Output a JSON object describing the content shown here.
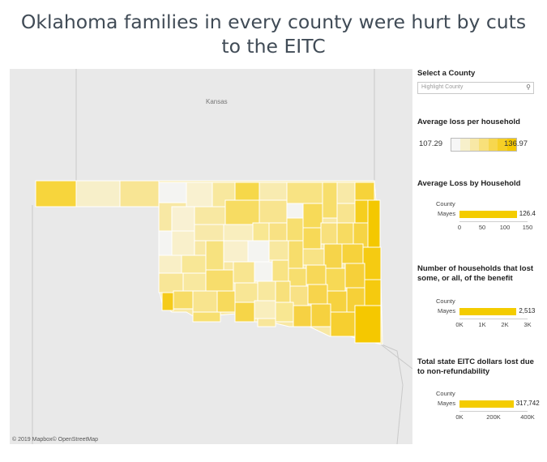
{
  "title": {
    "line1": "Oklahoma families in every county were hurt by cuts",
    "line2": "to the EITC"
  },
  "map": {
    "state_label": "Kansas",
    "attribution": "© 2019 Mapbox© OpenStreetMap"
  },
  "filter": {
    "heading": "Select a County",
    "placeholder": "Highlight County"
  },
  "color_legend": {
    "heading": "Average loss per household",
    "min": "107.29",
    "max": "136.97",
    "colors": [
      "#f6f6f6",
      "#f7f0cb",
      "#f8e8a6",
      "#f8e07a",
      "#f7d74e",
      "#f6cf26",
      "#f5c800"
    ]
  },
  "avg_loss_chart": {
    "heading": "Average Loss by Household",
    "field_label": "County",
    "category": "Mayes",
    "value_label": "126.4",
    "ticks": [
      "0",
      "50",
      "100",
      "150"
    ]
  },
  "households_chart": {
    "heading": "Number of households that lost some, or all, of the benefit",
    "field_label": "County",
    "category": "Mayes",
    "value_label": "2,513",
    "ticks": [
      "0K",
      "1K",
      "2K",
      "3K"
    ]
  },
  "dollars_chart": {
    "heading": "Total state EITC dollars lost due to non-refundability",
    "field_label": "County",
    "category": "Mayes",
    "value_label": "317,742",
    "ticks": [
      "0K",
      "200K",
      "400K"
    ]
  },
  "chart_data": [
    {
      "type": "bar",
      "title": "Average Loss by Household",
      "categories": [
        "Mayes"
      ],
      "values": [
        126.4
      ],
      "xlim": [
        0,
        150
      ],
      "ylabel": "County"
    },
    {
      "type": "bar",
      "title": "Number of households that lost some, or all, of the benefit",
      "categories": [
        "Mayes"
      ],
      "values": [
        2513
      ],
      "xlim": [
        0,
        3000
      ],
      "ylabel": "County"
    },
    {
      "type": "bar",
      "title": "Total state EITC dollars lost due to non-refundability",
      "categories": [
        "Mayes"
      ],
      "values": [
        317742
      ],
      "xlim": [
        0,
        400000
      ],
      "ylabel": "County"
    }
  ]
}
